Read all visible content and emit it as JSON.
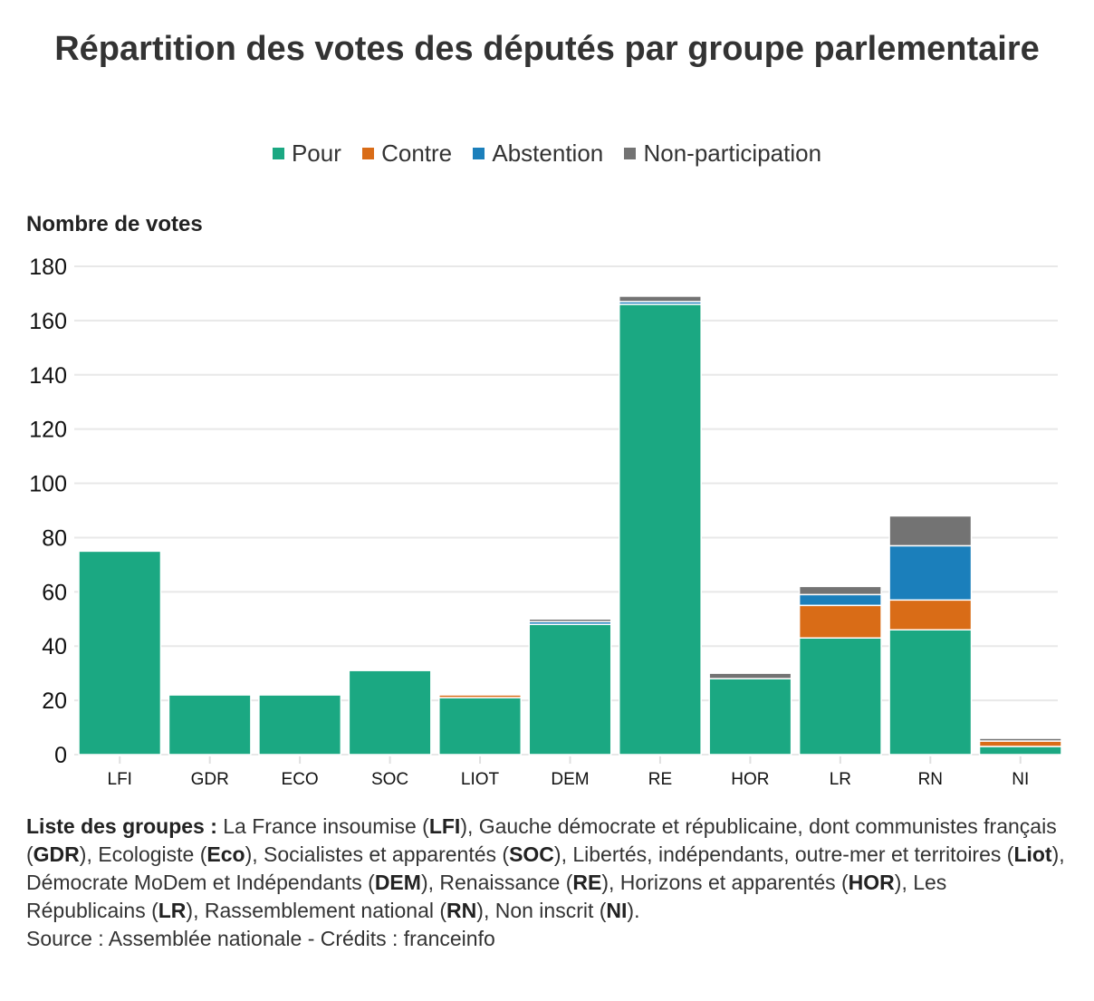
{
  "chart_data": {
    "type": "bar",
    "stacked": true,
    "title": "Répartition des votes des députés par groupe parlementaire",
    "xlabel": "",
    "ylabel": "Nombre de votes",
    "ylim": [
      0,
      180
    ],
    "yticks": [
      0,
      20,
      40,
      60,
      80,
      100,
      120,
      140,
      160,
      180
    ],
    "grid": true,
    "legend_position": "top-center",
    "categories": [
      "LFI",
      "GDR",
      "ECO",
      "SOC",
      "LIOT",
      "DEM",
      "RE",
      "HOR",
      "LR",
      "RN",
      "NI"
    ],
    "series": [
      {
        "name": "Pour",
        "color": "#1ba882",
        "values": [
          75,
          22,
          22,
          31,
          21,
          48,
          166,
          28,
          43,
          46,
          3
        ]
      },
      {
        "name": "Contre",
        "color": "#d96c17",
        "values": [
          0,
          0,
          0,
          0,
          1,
          0,
          0,
          0,
          12,
          11,
          2
        ]
      },
      {
        "name": "Abstention",
        "color": "#1b7fbb",
        "values": [
          0,
          0,
          0,
          0,
          0,
          1,
          1,
          0,
          4,
          20,
          0
        ]
      },
      {
        "name": "Non-participation",
        "color": "#737373",
        "values": [
          0,
          0,
          0,
          0,
          0,
          1,
          2,
          2,
          3,
          11,
          1
        ]
      }
    ]
  },
  "notes": {
    "groups_heading": "Liste des groupes :",
    "groups_parts": [
      {
        "t": " La France insoumise (",
        "b": false
      },
      {
        "t": "LFI",
        "b": true
      },
      {
        "t": "), Gauche démocrate et républicaine, dont communistes français (",
        "b": false
      },
      {
        "t": "GDR",
        "b": true
      },
      {
        "t": "), Ecologiste (",
        "b": false
      },
      {
        "t": "Eco",
        "b": true
      },
      {
        "t": "), Socialistes et apparentés (",
        "b": false
      },
      {
        "t": "SOC",
        "b": true
      },
      {
        "t": "), Libertés, indépendants, outre-mer et territoires (",
        "b": false
      },
      {
        "t": "Liot",
        "b": true
      },
      {
        "t": "), Démocrate MoDem et Indépendants (",
        "b": false
      },
      {
        "t": "DEM",
        "b": true
      },
      {
        "t": "), Renaissance (",
        "b": false
      },
      {
        "t": "RE",
        "b": true
      },
      {
        "t": "), Horizons et apparentés (",
        "b": false
      },
      {
        "t": "HOR",
        "b": true
      },
      {
        "t": "), Les Républicains (",
        "b": false
      },
      {
        "t": "LR",
        "b": true
      },
      {
        "t": "), Rassemblement national (",
        "b": false
      },
      {
        "t": "RN",
        "b": true
      },
      {
        "t": "), Non inscrit (",
        "b": false
      },
      {
        "t": "NI",
        "b": true
      },
      {
        "t": ").",
        "b": false
      }
    ],
    "source": "Source : Assemblée nationale - Crédits : franceinfo"
  }
}
